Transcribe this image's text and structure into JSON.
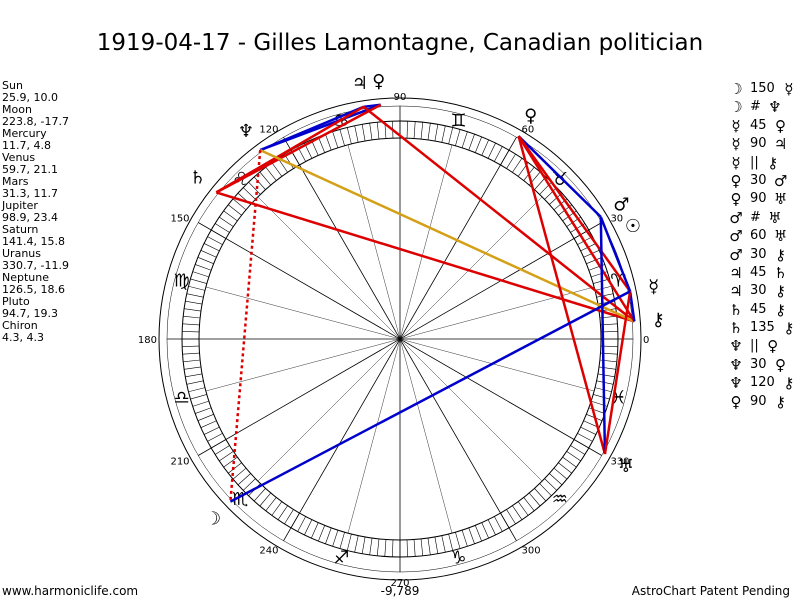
{
  "title": "1919-04-17 - Gilles Lamontagne, Canadian politician",
  "planets": [
    {
      "name": "Sun",
      "coords": "25.9, 10.0",
      "glyph": "☉",
      "lon": 25.9
    },
    {
      "name": "Moon",
      "coords": "223.8, -17.7",
      "glyph": "☽",
      "lon": 223.8
    },
    {
      "name": "Mercury",
      "coords": "11.7, 4.8",
      "glyph": "☿",
      "lon": 11.7
    },
    {
      "name": "Venus",
      "coords": "59.7, 21.1",
      "glyph": "♀",
      "lon": 59.7
    },
    {
      "name": "Mars",
      "coords": "31.3, 11.7",
      "glyph": "♂",
      "lon": 31.3
    },
    {
      "name": "Jupiter",
      "coords": "98.9, 23.4",
      "glyph": "♃",
      "lon": 98.9
    },
    {
      "name": "Saturn",
      "coords": "141.4, 15.8",
      "glyph": "♄",
      "lon": 141.4
    },
    {
      "name": "Uranus",
      "coords": "330.7, -11.9",
      "glyph": "♅",
      "lon": 330.7
    },
    {
      "name": "Neptune",
      "coords": "126.5, 18.6",
      "glyph": "♆",
      "lon": 126.5
    },
    {
      "name": "Pluto",
      "coords": "94.7, 19.3",
      "glyph": "♀",
      "lon": 94.7
    },
    {
      "name": "Chiron",
      "coords": "4.3, 4.3",
      "glyph": "⚷",
      "lon": 4.3
    }
  ],
  "zodiac_signs": [
    "♈",
    "♉",
    "♊",
    "♋",
    "♌",
    "♍",
    "♎",
    "♏",
    "♐",
    "♑",
    "♒",
    "♓"
  ],
  "degree_labels": [
    "0",
    "30",
    "60",
    "90",
    "120",
    "150",
    "180",
    "210",
    "240",
    "270",
    "300",
    "330"
  ],
  "aspects_list": [
    {
      "p1": "☽",
      "aspect": "150",
      "p2": "☿"
    },
    {
      "p1": "☽",
      "aspect": "#",
      "p2": "♆"
    },
    {
      "p1": "☿",
      "aspect": "45",
      "p2": "♀"
    },
    {
      "p1": "☿",
      "aspect": "90",
      "p2": "♃"
    },
    {
      "p1": "☿",
      "aspect": "||",
      "p2": "⚷"
    },
    {
      "p1": "♀",
      "aspect": "30",
      "p2": "♂"
    },
    {
      "p1": "♀",
      "aspect": "90",
      "p2": "♅"
    },
    {
      "p1": "♂",
      "aspect": "#",
      "p2": "♅"
    },
    {
      "p1": "♂",
      "aspect": "60",
      "p2": "♅"
    },
    {
      "p1": "♂",
      "aspect": "30",
      "p2": "⚷"
    },
    {
      "p1": "♃",
      "aspect": "45",
      "p2": "♄"
    },
    {
      "p1": "♃",
      "aspect": "30",
      "p2": "⚷"
    },
    {
      "p1": "♄",
      "aspect": "45",
      "p2": "⚷"
    },
    {
      "p1": "♄",
      "aspect": "135",
      "p2": "⚷"
    },
    {
      "p1": "♆",
      "aspect": "||",
      "p2": "♀"
    },
    {
      "p1": "♆",
      "aspect": "30",
      "p2": "♀"
    },
    {
      "p1": "♆",
      "aspect": "120",
      "p2": "⚷"
    },
    {
      "p1": "♀",
      "aspect": "90",
      "p2": "⚷"
    }
  ],
  "aspect_lines": [
    {
      "from": 98.9,
      "to": 94.7,
      "color": "#0000cc",
      "dashed": false
    },
    {
      "from": 94.7,
      "to": 126.5,
      "color": "#0000cc",
      "dashed": false
    },
    {
      "from": 98.9,
      "to": 126.5,
      "color": "#0000cc",
      "dashed": false
    },
    {
      "from": 98.9,
      "to": 141.4,
      "color": "#dd0000",
      "dashed": false
    },
    {
      "from": 94.7,
      "to": 141.4,
      "color": "#dd0000",
      "dashed": false
    },
    {
      "from": 98.9,
      "to": 4.3,
      "color": "#dd0000",
      "dashed": false
    },
    {
      "from": 141.4,
      "to": 4.3,
      "color": "#dd0000",
      "dashed": false
    },
    {
      "from": 126.5,
      "to": 4.3,
      "color": "#d4a017",
      "dashed": false
    },
    {
      "from": 59.7,
      "to": 31.3,
      "color": "#0000cc",
      "dashed": false
    },
    {
      "from": 59.7,
      "to": 11.7,
      "color": "#dd0000",
      "dashed": false
    },
    {
      "from": 59.7,
      "to": 4.3,
      "color": "#dd0000",
      "dashed": false
    },
    {
      "from": 59.7,
      "to": 330.7,
      "color": "#dd0000",
      "dashed": false
    },
    {
      "from": 31.3,
      "to": 330.7,
      "color": "#0000cc",
      "dashed": false
    },
    {
      "from": 31.3,
      "to": 11.7,
      "color": "#0000cc",
      "dashed": false
    },
    {
      "from": 11.7,
      "to": 4.3,
      "color": "#0000cc",
      "dashed": false
    },
    {
      "from": 11.7,
      "to": 330.7,
      "color": "#dd0000",
      "dashed": false
    },
    {
      "from": 223.8,
      "to": 11.7,
      "color": "#0000cc",
      "dashed": false
    },
    {
      "from": 126.5,
      "to": 223.8,
      "color": "#dd0000",
      "dashed": true
    }
  ],
  "footer": {
    "left": "www.harmoniclife.com",
    "center": "-9,789",
    "right": "AstroChart Patent Pending"
  }
}
